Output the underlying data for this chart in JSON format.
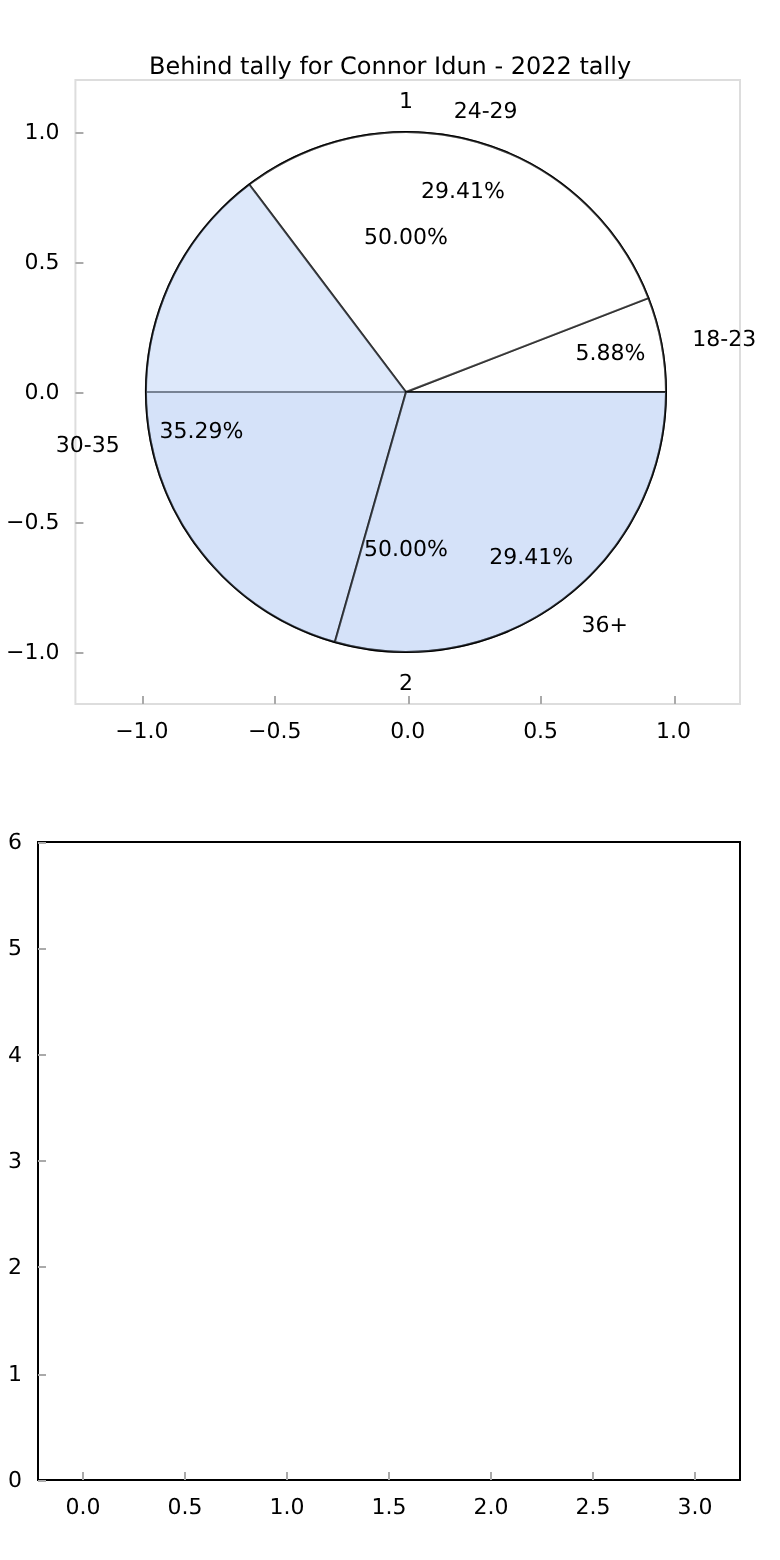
{
  "chart_data": [
    {
      "type": "scatter",
      "title": "Behind tally for Connor Idun - 2022 tally",
      "xlim": [
        -1.25,
        1.25
      ],
      "xticks": [
        {
          "value": -1,
          "label": "−1.0"
        },
        {
          "value": -0.5,
          "label": "−0.5"
        },
        {
          "value": 0,
          "label": "0.0"
        },
        {
          "value": 0.5,
          "label": "0.5"
        },
        {
          "value": 1,
          "label": "1.0"
        }
      ],
      "ylim": [
        -1.2,
        1.2
      ],
      "yticks": [
        {
          "value": -1,
          "label": "−1.0"
        },
        {
          "value": -0.5,
          "label": "−0.5"
        },
        {
          "value": 0,
          "label": "0.0"
        },
        {
          "value": 0.5,
          "label": "0.5"
        },
        {
          "value": 1,
          "label": "1.0"
        }
      ]
    },
    {
      "type": "pie",
      "categories": [
        "1",
        "2"
      ],
      "values": [
        50,
        50
      ],
      "value_labels": [
        "50.00%",
        "50.00%"
      ],
      "colors": [
        "#ffffff",
        "#eaf1fd"
      ]
    },
    {
      "type": "pie",
      "categories": [
        "18-23",
        "24-29",
        "30-35",
        "36+"
      ],
      "values": [
        5.88,
        29.41,
        35.29,
        29.41
      ],
      "value_labels": [
        "5.88%",
        "29.41%",
        "35.29%",
        "29.41%"
      ],
      "colors": [
        "#ffffff",
        "#ffffff",
        "#c6d9f7",
        "#c6d9f7"
      ]
    },
    {
      "type": "scatter",
      "xlim": [
        -0.22,
        3.22
      ],
      "xticks": [
        {
          "value": 0,
          "label": "0.0"
        },
        {
          "value": 0.5,
          "label": "0.5"
        },
        {
          "value": 1,
          "label": "1.0"
        },
        {
          "value": 1.5,
          "label": "1.5"
        },
        {
          "value": 2,
          "label": "2.0"
        },
        {
          "value": 2.5,
          "label": "2.5"
        },
        {
          "value": 3,
          "label": "3.0"
        }
      ],
      "ylim": [
        0,
        6
      ],
      "yticks": [
        0,
        1,
        2,
        3,
        4,
        5,
        6
      ]
    }
  ]
}
